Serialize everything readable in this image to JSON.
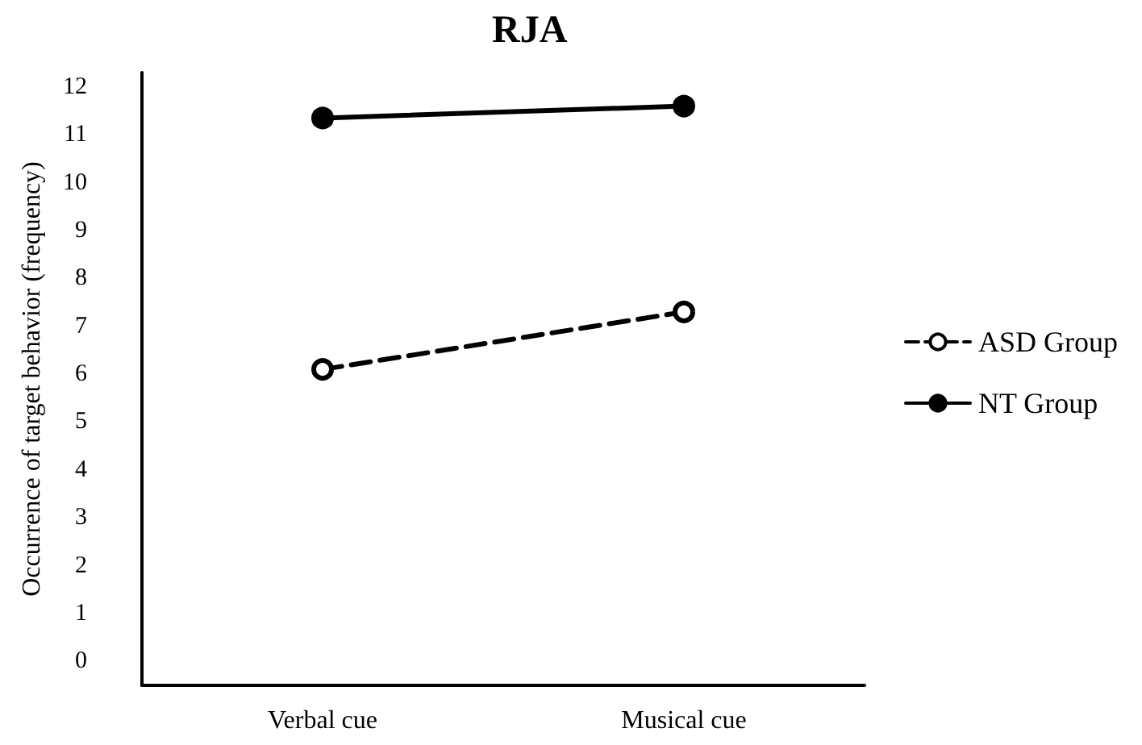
{
  "chart_data": {
    "type": "line",
    "title": "RJA",
    "ylabel": "Occurrence of target behavior (frequency)",
    "categories": [
      "Verbal cue",
      "Musical cue"
    ],
    "series": [
      {
        "name": "ASD Group",
        "color": "#000000",
        "values": [
          6.1,
          7.3
        ],
        "line_style": "dashed",
        "marker": "circle"
      },
      {
        "name": "NT Group",
        "color": "#000000",
        "values": [
          11.35,
          11.6
        ],
        "line_style": "solid",
        "marker": "circle"
      }
    ],
    "ylim": [
      -0.5,
      12.3
    ],
    "yticks": [
      0,
      1,
      2,
      3,
      4,
      5,
      6,
      7,
      8,
      9,
      10,
      11,
      12
    ],
    "grid": false,
    "legend": "right"
  }
}
